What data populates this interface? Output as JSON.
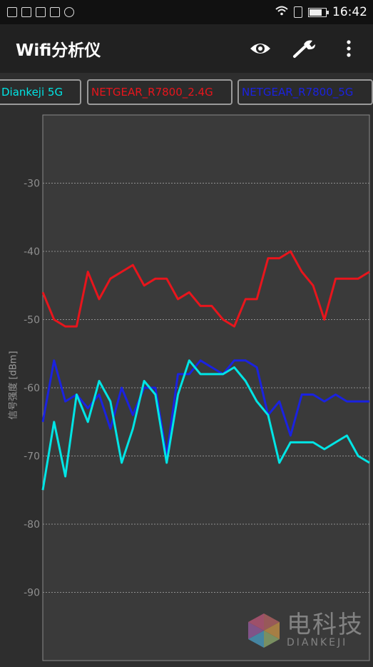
{
  "status_bar": {
    "time": "16:42",
    "battery_level": 0.8,
    "left_icons": [
      "image-icon",
      "photo-badge-icon",
      "apps-grid-icon",
      "e-badge-icon",
      "circle-dots-icon"
    ],
    "right_icons": [
      "wifi-icon",
      "sim-icon",
      "battery-icon"
    ]
  },
  "app_bar": {
    "title": "Wifi分析仪",
    "actions": [
      {
        "name": "eye-icon"
      },
      {
        "name": "wrench-icon"
      },
      {
        "name": "more-vert-icon"
      }
    ]
  },
  "networks": [
    {
      "label": "Diankeji 5G",
      "color": "#00e5e5"
    },
    {
      "label": "NETGEAR_R7800_2.4G",
      "color": "#e8151c"
    },
    {
      "label": "NETGEAR_R7800_5G",
      "color": "#1a22e0"
    }
  ],
  "chart_data": {
    "type": "line",
    "ylabel": "信号强度 [dBm]",
    "ylim": [
      -100,
      -20
    ],
    "yticks": [
      -30,
      -40,
      -50,
      -60,
      -70,
      -80,
      -90
    ],
    "grid": "horizontal dotted",
    "series": [
      {
        "name": "NETGEAR_R7800_2.4G",
        "color": "#e8151c",
        "values": [
          -46,
          -50,
          -51,
          -51,
          -43,
          -47,
          -44,
          -43,
          -42,
          -45,
          -44,
          -44,
          -47,
          -46,
          -48,
          -48,
          -50,
          -51,
          -47,
          -47,
          -41,
          -41,
          -40,
          -43,
          -45,
          -50,
          -44,
          -44,
          -44,
          -43
        ]
      },
      {
        "name": "NETGEAR_R7800_5G",
        "color": "#1a22e0",
        "values": [
          -65,
          -56,
          -62,
          -61,
          -63,
          -61,
          -66,
          -60,
          -64,
          -60,
          -60,
          -70,
          -58,
          -58,
          -56,
          -57,
          -58,
          -56,
          -56,
          -57,
          -64,
          -62,
          -67,
          -61,
          -61,
          -62,
          -61,
          -62,
          -62,
          -62
        ]
      },
      {
        "name": "Diankeji 5G",
        "color": "#00e5e5",
        "values": [
          -75,
          -65,
          -73,
          -61,
          -65,
          -59,
          -62,
          -71,
          -66,
          -59,
          -61,
          -71,
          -61,
          -56,
          -58,
          -58,
          -58,
          -57,
          -59,
          -62,
          -64,
          -71,
          -68,
          -68,
          -68,
          -69,
          -68,
          -67,
          -70,
          -71
        ]
      }
    ]
  },
  "watermark": {
    "cn": "电科技",
    "en": "DIANKEJI"
  }
}
